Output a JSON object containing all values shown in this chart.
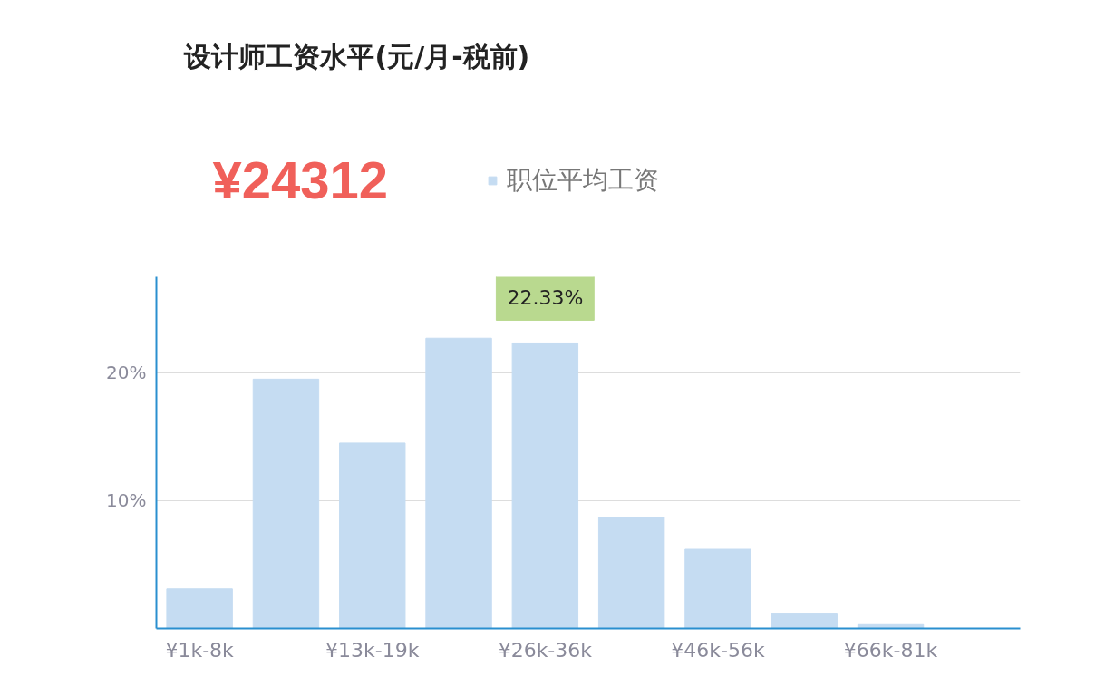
{
  "chart_data": {
    "type": "bar",
    "title": "设计师工资水平(元/月-税前)",
    "categories": [
      "¥1k-8k",
      null,
      "¥13k-19k",
      null,
      "¥26k-36k",
      null,
      "¥46k-56k",
      null,
      "¥66k-81k",
      null
    ],
    "series": [
      {
        "name": "职位平均工资",
        "color": "#c5dcf2",
        "values": [
          3.1,
          19.5,
          14.5,
          22.7,
          22.33,
          8.7,
          6.2,
          1.2,
          0.3,
          null
        ]
      }
    ],
    "ylim": [
      0,
      27.5
    ],
    "yticks": [
      {
        "value": 0,
        "label": null
      },
      {
        "value": 10,
        "label": "10%"
      },
      {
        "value": 20,
        "label": "20%"
      }
    ],
    "grid": "y",
    "legend": "top",
    "annotations": [
      "¥24312",
      {
        "text": "22.33%",
        "x": "¥26k-36k",
        "y": 22.33
      }
    ]
  }
}
